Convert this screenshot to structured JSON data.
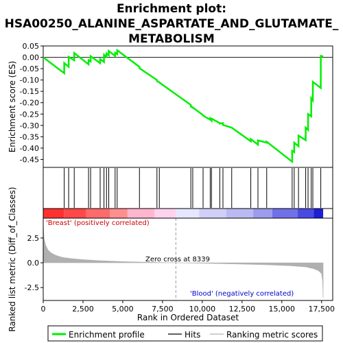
{
  "chart_data": {
    "type": "line",
    "title_line1": "Enrichment plot:",
    "title_line2": "HSA00250_ALANINE_ASPARTATE_AND_GLUTAMATE_",
    "title_line3": "METABOLISM",
    "es_ylabel": "Enrichment score (ES)",
    "metric_ylabel": "Ranked list metric (Diff_of_Classes)",
    "xlabel": "Rank in Ordered Dataset",
    "xlim": [
      0,
      18200
    ],
    "x_ticks": [
      0,
      2500,
      5000,
      7500,
      10000,
      12500,
      15000,
      17500
    ],
    "x_tick_labels": [
      "0",
      "2,500",
      "5,000",
      "7,500",
      "10,000",
      "12,500",
      "15,000",
      "17,500"
    ],
    "es_ylim": [
      -0.485,
      0.05
    ],
    "es_ticks": [
      0.05,
      0.0,
      -0.05,
      -0.1,
      -0.15,
      -0.2,
      -0.25,
      -0.3,
      -0.35,
      -0.4,
      -0.45
    ],
    "es_tick_labels": [
      "0.05",
      "0.00",
      "-0.05",
      "-0.10",
      "-0.15",
      "-0.20",
      "-0.25",
      "-0.30",
      "-0.35",
      "-0.40",
      "-0.45"
    ],
    "metric_ylim": [
      -3.8,
      4.5
    ],
    "metric_ticks": [
      2.5,
      0,
      -2.5
    ],
    "metric_tick_labels": [
      "2.5",
      "0.0",
      "-2.5"
    ],
    "zero_cross_label": "Zero cross at 8339",
    "zero_cross": 8339,
    "pos_label": "'Breast' (positively correlated)",
    "neg_label": "'Blood' (negatively correlated)",
    "legend": [
      "Enrichment profile",
      "Hits",
      "Ranking metric scores"
    ],
    "colors": {
      "es_line": "#00ee00",
      "hits": "#000000",
      "metric": "#b0b0b0",
      "pos_text": "#cc0000",
      "neg_text": "#0000cc",
      "zero_line": "#999999"
    },
    "hits": [
      1320,
      1600,
      1950,
      2850,
      2980,
      3580,
      3820,
      3980,
      4120,
      4520,
      4650,
      6050,
      7150,
      7300,
      9280,
      9400,
      10050,
      10500,
      10580,
      11100,
      11300,
      11850,
      13050,
      13500,
      14050,
      15650,
      15780,
      16050,
      16500,
      16650,
      16850,
      16950,
      17450
    ],
    "es_profile": {
      "x": [
        0,
        1320,
        1321,
        1600,
        1601,
        1950,
        1951,
        2850,
        2851,
        2980,
        2981,
        3580,
        3581,
        3820,
        3821,
        3980,
        3981,
        4120,
        4121,
        4520,
        4521,
        4650,
        4651,
        6050,
        6051,
        7150,
        7151,
        7300,
        7301,
        9280,
        9281,
        9400,
        9401,
        10050,
        10051,
        10500,
        10501,
        10580,
        10581,
        11100,
        11101,
        11300,
        11301,
        11850,
        11851,
        13050,
        13051,
        13500,
        13501,
        14050,
        14051,
        15650,
        15651,
        15780,
        15781,
        16050,
        16051,
        16500,
        16501,
        16650,
        16651,
        16850,
        16851,
        16950,
        16951,
        17450,
        17451,
        17600
      ],
      "y": [
        0.0,
        -0.07,
        -0.025,
        -0.042,
        0.002,
        -0.013,
        0.019,
        -0.031,
        -0.012,
        -0.018,
        0.005,
        -0.026,
        -0.008,
        -0.021,
        0.012,
        0.003,
        0.017,
        0.009,
        0.028,
        0.006,
        0.02,
        0.014,
        0.031,
        -0.042,
        -0.048,
        -0.1,
        -0.105,
        -0.11,
        -0.111,
        -0.21,
        -0.217,
        -0.222,
        -0.221,
        -0.255,
        -0.257,
        -0.275,
        -0.271,
        -0.279,
        -0.27,
        -0.29,
        -0.292,
        -0.29,
        -0.298,
        -0.31,
        -0.31,
        -0.37,
        -0.36,
        -0.385,
        -0.366,
        -0.376,
        -0.372,
        -0.46,
        -0.412,
        -0.418,
        -0.376,
        -0.392,
        -0.345,
        -0.365,
        -0.31,
        -0.32,
        -0.25,
        -0.26,
        -0.18,
        -0.19,
        -0.108,
        -0.135,
        0.006,
        0.004
      ]
    },
    "metric_profile": {
      "x": [
        0,
        50,
        150,
        300,
        500,
        800,
        1200,
        1800,
        2500,
        3500,
        5000,
        6500,
        8339,
        10000,
        12000,
        14000,
        15500,
        16500,
        17000,
        17300,
        17500,
        17560,
        17600
      ],
      "y": [
        4.2,
        2.5,
        1.8,
        1.3,
        1.0,
        0.75,
        0.55,
        0.42,
        0.32,
        0.22,
        0.12,
        0.06,
        0.0,
        -0.05,
        -0.12,
        -0.2,
        -0.3,
        -0.42,
        -0.6,
        -0.8,
        -1.1,
        -1.8,
        -3.5
      ]
    },
    "heat_segments": [
      {
        "end": 1300,
        "color": "#ff3030"
      },
      {
        "end": 2700,
        "color": "#ff4848"
      },
      {
        "end": 4200,
        "color": "#ff6a6a"
      },
      {
        "end": 5300,
        "color": "#ff8f8f"
      },
      {
        "end": 7000,
        "color": "#ffb6ce"
      },
      {
        "end": 8339,
        "color": "#ffd2ee"
      },
      {
        "end": 9800,
        "color": "#e6e6ff"
      },
      {
        "end": 11500,
        "color": "#cfcff8"
      },
      {
        "end": 13200,
        "color": "#babaf2"
      },
      {
        "end": 14400,
        "color": "#9c9ced"
      },
      {
        "end": 16000,
        "color": "#7070e8"
      },
      {
        "end": 17000,
        "color": "#4a4ae2"
      },
      {
        "end": 17600,
        "color": "#1e1ed2"
      }
    ]
  }
}
